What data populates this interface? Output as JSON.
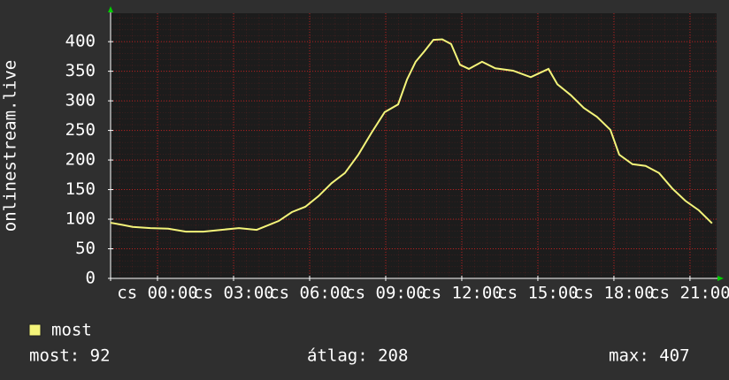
{
  "chart_data": {
    "type": "line",
    "y_label": "onlinestream.live",
    "x": [
      -1.85,
      -1.33,
      -0.98,
      -0.28,
      0.42,
      1.12,
      1.81,
      2.51,
      3.21,
      3.91,
      4.26,
      4.78,
      5.3,
      5.83,
      6.35,
      6.87,
      7.39,
      7.92,
      8.44,
      8.96,
      9.49,
      9.84,
      10.18,
      10.53,
      10.88,
      11.23,
      11.58,
      11.93,
      12.28,
      12.8,
      13.32,
      14.02,
      14.72,
      15.42,
      15.77,
      16.29,
      16.81,
      17.33,
      17.86,
      18.21,
      18.73,
      19.25,
      19.78,
      20.3,
      20.82,
      21.35,
      21.87
    ],
    "series": [
      {
        "name": "most",
        "color": "#f4f47a",
        "values": [
          94,
          90,
          87,
          85,
          84,
          79,
          79,
          82,
          85,
          82,
          88,
          97,
          112,
          121,
          139,
          161,
          178,
          209,
          246,
          281,
          294,
          336,
          366,
          384,
          403,
          404,
          396,
          361,
          354,
          366,
          355,
          351,
          340,
          354,
          328,
          310,
          288,
          273,
          251,
          209,
          193,
          190,
          178,
          152,
          131,
          115,
          93
        ]
      }
    ],
    "xlim": [
      -1.85,
      22.05
    ],
    "xticks": [
      {
        "value": 0,
        "label": "cs 00:00"
      },
      {
        "value": 3,
        "label": "cs 03:00"
      },
      {
        "value": 6,
        "label": "cs 06:00"
      },
      {
        "value": 9,
        "label": "cs 09:00"
      },
      {
        "value": 12,
        "label": "cs 12:00"
      },
      {
        "value": 15,
        "label": "cs 15:00"
      },
      {
        "value": 18,
        "label": "cs 18:00"
      },
      {
        "value": 21,
        "label": "cs 21:00"
      }
    ],
    "ylim": [
      0,
      448
    ],
    "yticks": [
      0,
      50,
      100,
      150,
      200,
      250,
      300,
      350,
      400
    ],
    "grid": true,
    "stats": [
      "most: 92",
      "átlag: 208",
      "max: 407"
    ]
  }
}
